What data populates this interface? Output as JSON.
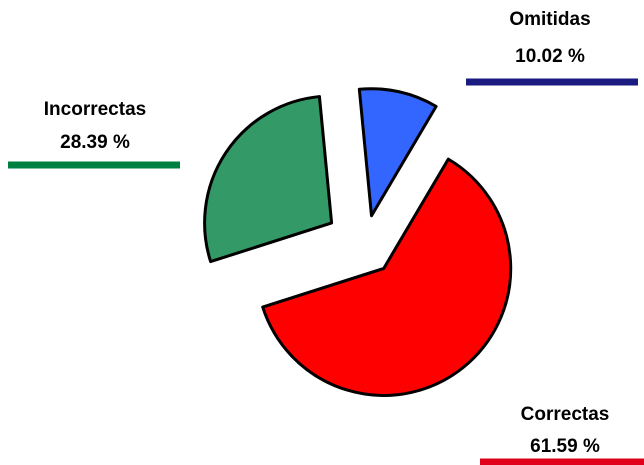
{
  "chart_data": {
    "type": "pie",
    "categories": [
      "Omitidas",
      "Correctas",
      "Incorrectas"
    ],
    "values": [
      10.02,
      61.59,
      28.39
    ],
    "value_labels": [
      "10.02 %",
      "61.59 %",
      "28.39 %"
    ],
    "colors": [
      "#3366ff",
      "#ff0000",
      "#339966"
    ],
    "label_line_colors": [
      "#1a1a80",
      "#e0001a",
      "#008040"
    ],
    "exploded": true
  }
}
